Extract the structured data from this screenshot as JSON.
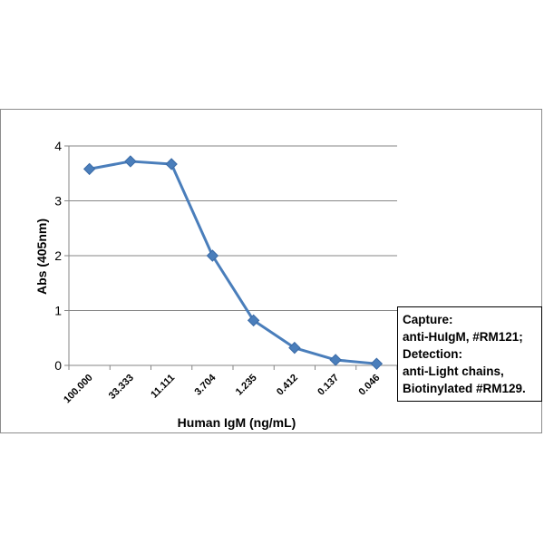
{
  "chart_data": {
    "type": "line",
    "categories": [
      "100.000",
      "33.333",
      "11.111",
      "3.704",
      "1.235",
      "0.412",
      "0.137",
      "0.046"
    ],
    "series": [
      {
        "values": [
          3.58,
          3.72,
          3.67,
          2.0,
          0.82,
          0.32,
          0.1,
          0.03
        ],
        "color": "#4a7ebb"
      }
    ],
    "xlabel": "Human IgM (ng/mL)",
    "ylabel": "Abs (405nm)",
    "ylim": [
      0,
      4
    ],
    "yticks": [
      "0",
      "1",
      "2",
      "3",
      "4"
    ],
    "grid": true,
    "legend_placement": "right",
    "annotation_lines": [
      "Capture:",
      "anti-HuIgM, #RM121;",
      "Detection:",
      "anti-Light chains,",
      "Biotinylated #RM129."
    ]
  }
}
